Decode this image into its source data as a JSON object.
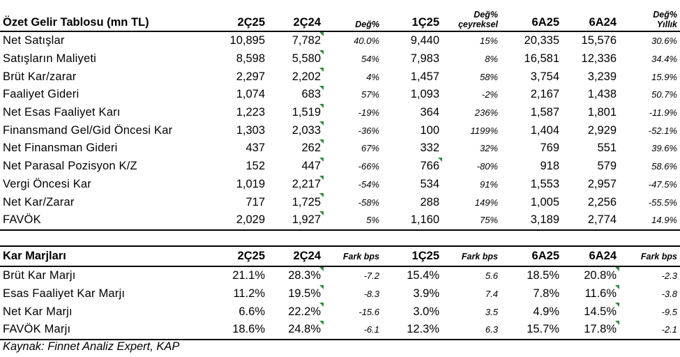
{
  "income": {
    "title": "Özet Gelir Tablosu (mn TL)",
    "columns": [
      "2Ç25",
      "2Ç24",
      "Değ%",
      "1Ç25",
      "Değ%\nçeyreksel",
      "6A25",
      "6A24",
      "Değ%\nYıllık"
    ],
    "rows": [
      {
        "label": "Net Satışlar",
        "values": [
          "10,895",
          "7,782",
          "40.0%",
          "9,440",
          "15%",
          "20,335",
          "15,576",
          "30.6%"
        ]
      },
      {
        "label": "Satışların Maliyeti",
        "values": [
          "8,598",
          "5,580",
          "54%",
          "7,983",
          "8%",
          "16,581",
          "12,336",
          "34.4%"
        ]
      },
      {
        "label": "Brüt Kar/zarar",
        "values": [
          "2,297",
          "2,202",
          "4%",
          "1,457",
          "58%",
          "3,754",
          "3,239",
          "15.9%"
        ]
      },
      {
        "label": "Faaliyet Gideri",
        "values": [
          "1,074",
          "683",
          "57%",
          "1,093",
          "-2%",
          "2,167",
          "1,438",
          "50.7%"
        ]
      },
      {
        "label": "Net Esas Faaliyet Karı",
        "values": [
          "1,223",
          "1,519",
          "-19%",
          "364",
          "236%",
          "1,587",
          "1,801",
          "-11.9%"
        ]
      },
      {
        "label": "Finansmand Gel/Gid Öncesi Kar",
        "values": [
          "1,303",
          "2,033",
          "-36%",
          "100",
          "1199%",
          "1,404",
          "2,929",
          "-52.1%"
        ]
      },
      {
        "label": "Net Finansman Gideri",
        "values": [
          "437",
          "262",
          "67%",
          "332",
          "32%",
          "769",
          "551",
          "39.6%"
        ]
      },
      {
        "label": "Net Parasal Pozisyon K/Z",
        "values": [
          "152",
          "447",
          "-66%",
          "766",
          "-80%",
          "918",
          "579",
          "58.6%"
        ]
      },
      {
        "label": "Vergi Öncesi Kar",
        "values": [
          "1,019",
          "2,217",
          "-54%",
          "534",
          "91%",
          "1,553",
          "2,957",
          "-47.5%"
        ]
      },
      {
        "label": "Net Kar/Zarar",
        "values": [
          "717",
          "1,725",
          "-58%",
          "288",
          "149%",
          "1,005",
          "2,256",
          "-55.5%"
        ]
      },
      {
        "label": "FAVÖK",
        "values": [
          "2,029",
          "1,927",
          "5%",
          "1,160",
          "75%",
          "3,189",
          "2,774",
          "14.9%"
        ]
      }
    ]
  },
  "margins": {
    "title": "Kar Marjları",
    "columns": [
      "2Ç25",
      "2Ç24",
      "Fark bps",
      "1Ç25",
      "Fark bps",
      "6A25",
      "6A24",
      "Fark bps"
    ],
    "rows": [
      {
        "label": "Brüt Kar Marjı",
        "values": [
          "21.1%",
          "28.3%",
          "-7.2",
          "15.4%",
          "5.6",
          "18.5%",
          "20.8%",
          "-2.3"
        ]
      },
      {
        "label": "Esas Faaliyet Kar Marjı",
        "values": [
          "11.2%",
          "19.5%",
          "-8.3",
          "3.9%",
          "7.4",
          "7.8%",
          "11.6%",
          "-3.8"
        ]
      },
      {
        "label": "Net Kar Marjı",
        "values": [
          "6.6%",
          "22.2%",
          "-15.6",
          "3.0%",
          "3.5",
          "4.9%",
          "14.5%",
          "-9.5"
        ]
      },
      {
        "label": "FAVÖK Marjı",
        "values": [
          "18.6%",
          "24.8%",
          "-6.1",
          "12.3%",
          "6.3",
          "15.7%",
          "17.8%",
          "-2.1"
        ]
      }
    ]
  },
  "source": "Kaynak: Finnet Analiz Expert, KAP"
}
